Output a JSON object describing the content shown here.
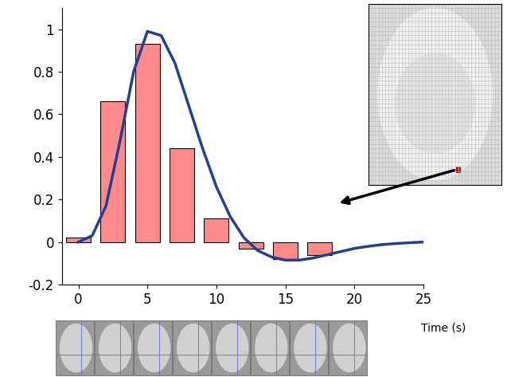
{
  "chart_data": {
    "type": "combo",
    "x_label": "Time (s)",
    "xlim": [
      -1.2,
      25
    ],
    "xticks": [
      0,
      5,
      10,
      15,
      20,
      25
    ],
    "ylim": [
      -0.2,
      1.1
    ],
    "yticks": [
      -0.2,
      0,
      0.2,
      0.4,
      0.6,
      0.8,
      1
    ],
    "grid": false,
    "series": [
      {
        "type": "bar",
        "color": "#ff8a8a",
        "x": [
          0,
          2.5,
          5,
          7.5,
          10,
          12.5,
          15,
          17.5
        ],
        "values": [
          0.02,
          0.66,
          0.93,
          0.44,
          0.11,
          -0.03,
          -0.08,
          -0.06
        ]
      },
      {
        "type": "line",
        "color": "#233f94",
        "x": [
          0,
          1,
          2,
          3,
          4,
          5,
          6,
          7,
          8,
          9,
          10,
          11,
          12,
          13,
          14,
          15,
          16,
          17,
          18,
          19,
          20,
          21,
          22,
          23,
          24,
          25
        ],
        "values": [
          0.0,
          0.03,
          0.17,
          0.47,
          0.8,
          0.99,
          0.97,
          0.84,
          0.64,
          0.44,
          0.26,
          0.12,
          0.02,
          -0.04,
          -0.07,
          -0.085,
          -0.085,
          -0.075,
          -0.06,
          -0.045,
          -0.03,
          -0.02,
          -0.012,
          -0.007,
          -0.003,
          0.0
        ]
      }
    ]
  }
}
